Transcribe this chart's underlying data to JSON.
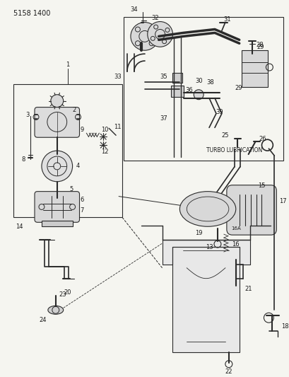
{
  "title": "5158 1400",
  "bg_color": "#f5f5f0",
  "line_color": "#2a2a2a",
  "text_color": "#1a1a1a",
  "figsize": [
    4.1,
    5.33
  ],
  "dpi": 100
}
